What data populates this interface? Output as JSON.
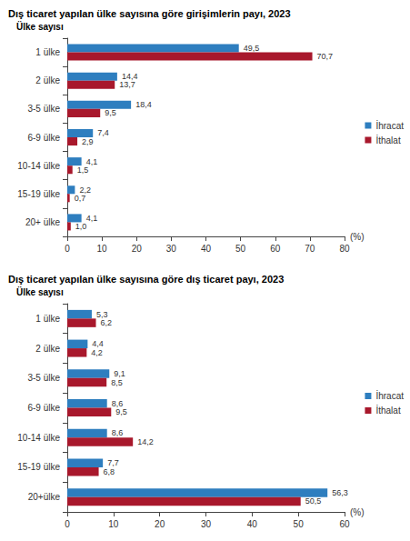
{
  "chart_data": [
    {
      "type": "bar",
      "title": "Dış ticaret yapılan ülke sayısına göre girişimlerin payı, 2023",
      "ylabel": "Ülke sayısı",
      "xlabel": "(%)",
      "orientation": "horizontal",
      "categories": [
        "1 ülke",
        "2 ülke",
        "3-5 ülke",
        "6-9 ülke",
        "10-14 ülke",
        "15-19 ülke",
        "20+ ülke"
      ],
      "series": [
        {
          "name": "İhracat",
          "color": "#2e7ebf",
          "values": [
            49.5,
            14.4,
            18.4,
            7.4,
            4.1,
            2.2,
            4.1
          ],
          "value_labels": [
            "49,5",
            "14,4",
            "18,4",
            "7,4",
            "4,1",
            "2,2",
            "4,1"
          ]
        },
        {
          "name": "İthalat",
          "color": "#a8182c",
          "values": [
            70.7,
            13.7,
            9.5,
            2.9,
            1.5,
            0.7,
            1.0
          ],
          "value_labels": [
            "70,7",
            "13,7",
            "9,5",
            "2,9",
            "1,5",
            "0,7",
            "1,0"
          ]
        }
      ],
      "xlim": [
        0,
        80
      ],
      "xticks": [
        0,
        10,
        20,
        30,
        40,
        50,
        60,
        70,
        80
      ],
      "data_labels": true,
      "grid": false,
      "legend": "right"
    },
    {
      "type": "bar",
      "title": "Dış ticaret yapılan ülke sayısına göre dış ticaret payı, 2023",
      "ylabel": "Ülke sayısı",
      "xlabel": "(%)",
      "orientation": "horizontal",
      "categories": [
        "1 ülke",
        "2 ülke",
        "3-5 ülke",
        "6-9 ülke",
        "10-14 ülke",
        "15-19 ülke",
        "20+ülke"
      ],
      "series": [
        {
          "name": "İhracat",
          "color": "#2e7ebf",
          "values": [
            5.3,
            4.4,
            9.1,
            8.6,
            8.6,
            7.7,
            56.3
          ],
          "value_labels": [
            "5,3",
            "4,4",
            "9,1",
            "8,6",
            "8,6",
            "7,7",
            "56,3"
          ]
        },
        {
          "name": "İthalat",
          "color": "#a8182c",
          "values": [
            6.2,
            4.2,
            8.5,
            9.5,
            14.2,
            6.8,
            50.5
          ],
          "value_labels": [
            "6,2",
            "4,2",
            "8,5",
            "9,5",
            "14,2",
            "6,8",
            "50,5"
          ]
        }
      ],
      "xlim": [
        0,
        60
      ],
      "xticks": [
        0,
        10,
        20,
        30,
        40,
        50,
        60
      ],
      "data_labels": true,
      "grid": false,
      "legend": "right"
    }
  ]
}
